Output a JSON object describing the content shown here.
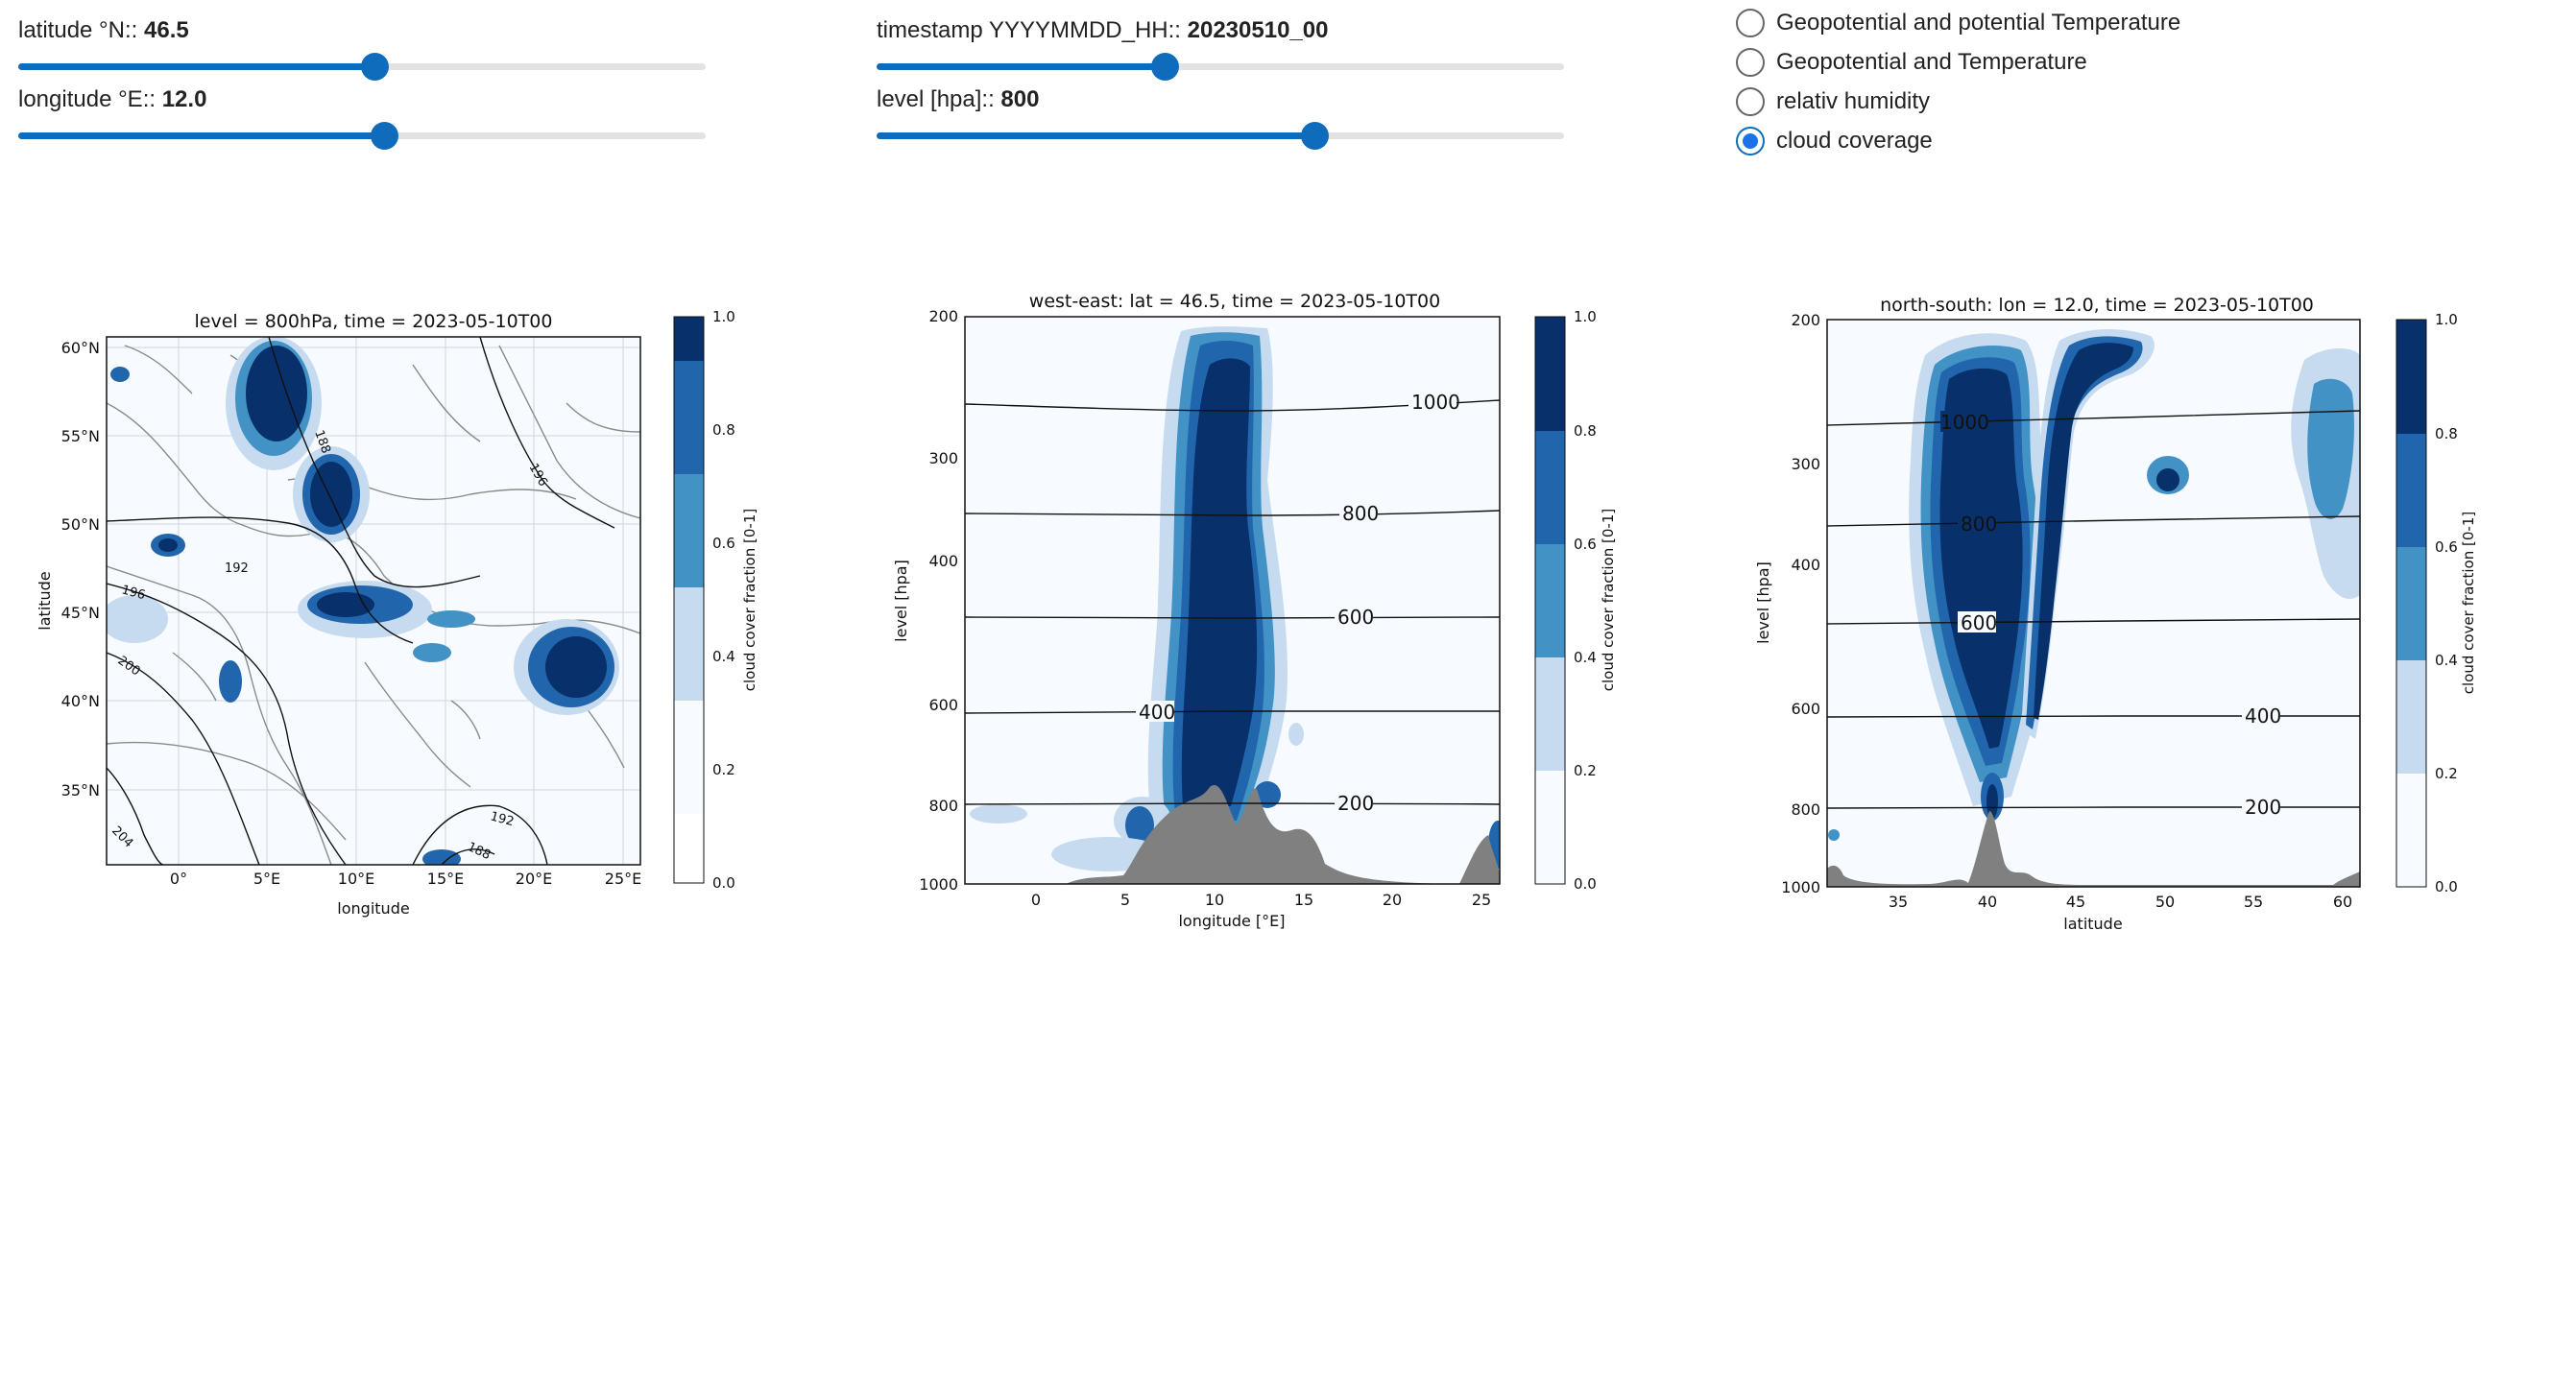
{
  "sliders": {
    "latitude": {
      "label": "latitude °N::",
      "value": "46.5",
      "fraction": 0.52
    },
    "longitude": {
      "label": "longitude °E::",
      "value": "12.0",
      "fraction": 0.53
    },
    "timestamp": {
      "label": "timestamp YYYYMMDD_HH::",
      "value": "20230510_00",
      "fraction": 0.42
    },
    "level": {
      "label": "level [hpa]::",
      "value": "800",
      "fraction": 0.64
    }
  },
  "options": {
    "items": [
      {
        "label": "Geopotential and potential Temperature",
        "selected": false
      },
      {
        "label": "Geopotential and Temperature",
        "selected": false
      },
      {
        "label": "relativ humidity",
        "selected": false
      },
      {
        "label": "cloud coverage",
        "selected": true
      }
    ]
  },
  "colors": {
    "accent": "#0f6cbd",
    "radio_dot": "#1a73e8",
    "terrain": "#808080",
    "cloud_levels": [
      "#f7fbff",
      "#c6dbef",
      "#4292c6",
      "#2166ac",
      "#08306b"
    ]
  },
  "chart_data": [
    {
      "type": "heatmap",
      "title": "level = 800hPa, time = 2023-05-10T00",
      "xlabel": "longitude",
      "ylabel": "latitude",
      "xticks": [
        "0°",
        "5°E",
        "10°E",
        "15°E",
        "20°E",
        "25°E"
      ],
      "yticks": [
        "60°N",
        "55°N",
        "50°N",
        "45°N",
        "40°N",
        "35°N"
      ],
      "xlim": [
        -4,
        26
      ],
      "ylim": [
        31,
        61
      ],
      "contour_labels": [
        "188",
        "192",
        "196",
        "200",
        "204",
        "188",
        "192",
        "196"
      ],
      "colorbar": {
        "label": "cloud cover fraction [0-1]",
        "ticks": [
          "0.0",
          "0.2",
          "0.4",
          "0.6",
          "0.8",
          "1.0"
        ]
      }
    },
    {
      "type": "heatmap",
      "title": "west-east: lat = 46.5, time = 2023-05-10T00",
      "xlabel": "longitude [°E]",
      "ylabel": "level [hpa]",
      "xticks": [
        "0",
        "5",
        "10",
        "15",
        "20",
        "25"
      ],
      "yticks": [
        "200",
        "300",
        "400",
        "600",
        "800",
        "1000"
      ],
      "xlim": [
        -4,
        26
      ],
      "contour_labels": [
        "1000",
        "800",
        "600",
        "400",
        "200"
      ],
      "colorbar": {
        "label": "cloud cover fraction [0-1]",
        "ticks": [
          "0.0",
          "0.2",
          "0.4",
          "0.6",
          "0.8",
          "1.0"
        ]
      }
    },
    {
      "type": "heatmap",
      "title": "north-south: lon = 12.0, time = 2023-05-10T00",
      "xlabel": "latitude",
      "ylabel": "level [hpa]",
      "xticks": [
        "35",
        "40",
        "45",
        "50",
        "55",
        "60"
      ],
      "yticks": [
        "200",
        "300",
        "400",
        "600",
        "800",
        "1000"
      ],
      "xlim": [
        31,
        61
      ],
      "contour_labels": [
        "1000",
        "800",
        "600",
        "400",
        "200"
      ],
      "colorbar": {
        "label": "cloud cover fraction [0-1]",
        "ticks": [
          "0.0",
          "0.2",
          "0.4",
          "0.6",
          "0.8",
          "1.0"
        ]
      }
    }
  ]
}
